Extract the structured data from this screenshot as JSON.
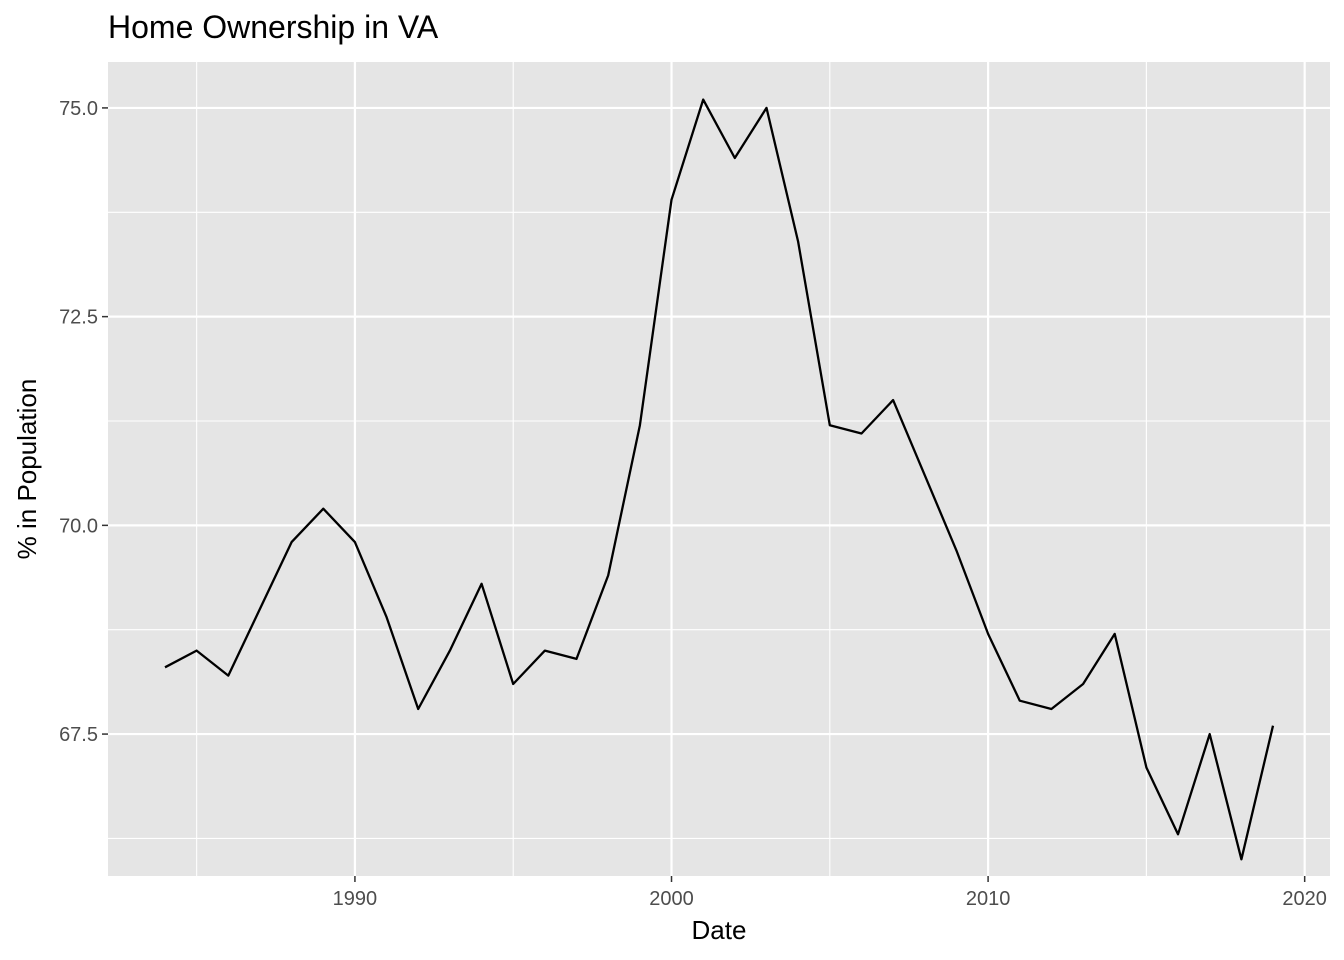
{
  "chart_data": {
    "type": "line",
    "title": "Home Ownership in VA",
    "xlabel": "Date",
    "ylabel": "% in Population",
    "xlim": [
      1982.2,
      2020.8
    ],
    "ylim": [
      65.8,
      75.55
    ],
    "x_ticks": [
      1990,
      2000,
      2010,
      2020
    ],
    "x_tick_labels": [
      "1990",
      "2000",
      "2010",
      "2020"
    ],
    "x_minor_ticks": [
      1985,
      1995,
      2005,
      2015
    ],
    "y_ticks": [
      67.5,
      70.0,
      72.5,
      75.0
    ],
    "y_tick_labels": [
      "67.5",
      "70.0",
      "72.5",
      "75.0"
    ],
    "y_minor_ticks": [
      66.25,
      68.75,
      71.25,
      73.75
    ],
    "grid": true,
    "panel_color": "#e5e5e5",
    "line_color": "#000000",
    "series": [
      {
        "x": [
          1984,
          1985,
          1986,
          1987,
          1988,
          1989,
          1990,
          1991,
          1992,
          1993,
          1994,
          1995,
          1996,
          1997,
          1998,
          1999,
          2000,
          2001,
          2002,
          2003,
          2004,
          2005,
          2006,
          2007,
          2008,
          2009,
          2010,
          2011,
          2012,
          2013,
          2014,
          2015,
          2016,
          2017,
          2018,
          2019
        ],
        "values": [
          68.3,
          68.5,
          68.2,
          69.0,
          69.8,
          70.2,
          69.8,
          68.9,
          67.8,
          68.5,
          69.3,
          68.1,
          68.5,
          68.4,
          69.4,
          71.2,
          73.9,
          75.1,
          74.4,
          75.0,
          73.4,
          71.2,
          71.1,
          71.5,
          70.6,
          69.7,
          68.7,
          67.9,
          67.8,
          68.1,
          68.7,
          67.1,
          66.3,
          67.5,
          66.0,
          67.6
        ]
      }
    ]
  }
}
